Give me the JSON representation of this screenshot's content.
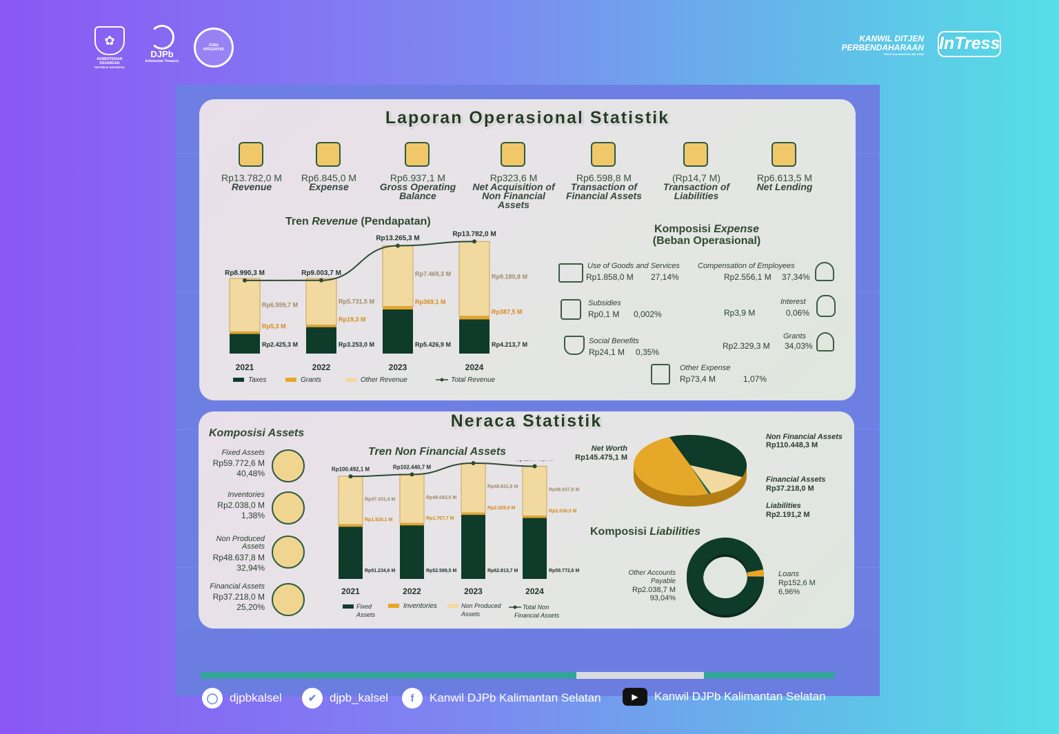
{
  "header": {
    "logo1_text": "KEMENTERIAN KEUANGAN",
    "logo1_sub": "REPUBLIK INDONESIA",
    "logo2_text": "DJPb",
    "logo2_sub": "Indonesian Treasury",
    "logo3_text": "ZONA INTEGRITAS",
    "right_logo_line1": "KANWIL DITJEN",
    "right_logo_line2": "PERBENDAHARAAN",
    "right_logo_line3": "PROV KALIMANTAN SELATAN",
    "right_badge": "InTress"
  },
  "lo": {
    "title": "Laporan Operasional Statistik",
    "kpis": [
      {
        "value": "Rp13.782,0 M",
        "label": "Revenue"
      },
      {
        "value": "Rp6.845,0 M",
        "label": "Expense"
      },
      {
        "value": "Rp6.937,1 M",
        "label": "Gross Operating Balance"
      },
      {
        "value": "Rp323,6 M",
        "label": "Net Acquisition of Non Financial Assets"
      },
      {
        "value": "Rp6.598,8 M",
        "label": "Transaction of Financial Assets"
      },
      {
        "value": "(Rp14,7 M)",
        "label": "Transaction of Liabilities"
      },
      {
        "value": "Rp6.613,5 M",
        "label": "Net Lending"
      }
    ],
    "trend_title_a": "Tren ",
    "trend_title_b": "Revenue",
    "trend_title_c": " (Pendapatan)",
    "expense_title_a": "Komposisi ",
    "expense_title_b": "Expense",
    "expense_title_c": "(Beban Operasional)",
    "expense_items": [
      {
        "label": "Use of Goods and Services",
        "value": "Rp1.858,0 M",
        "pct": "27,14%"
      },
      {
        "label": "Compensation of Employees",
        "value": "Rp2.556,1 M",
        "pct": "37,34%"
      },
      {
        "label": "Subsidies",
        "value": "Rp0,1 M",
        "pct": "0,002%"
      },
      {
        "label": "Interest",
        "value": "Rp3,9 M",
        "pct": "0,06%"
      },
      {
        "label": "Social Benefits",
        "value": "Rp24,1 M",
        "pct": "0,35%"
      },
      {
        "label": "Grants",
        "value": "Rp2.329,3 M",
        "pct": "34,03%"
      },
      {
        "label": "Other Expense",
        "value": "Rp73,4 M",
        "pct": "1,07%"
      }
    ]
  },
  "neraca": {
    "title": "Neraca Statistik",
    "assets_title_a": "Komposisi ",
    "assets_title_b": "Assets",
    "assets": [
      {
        "label": "Fixed Assets",
        "value": "Rp59.772,6 M",
        "pct": "40,48%"
      },
      {
        "label": "Inventories",
        "value": "Rp2.038,0 M",
        "pct": "1,38%"
      },
      {
        "label": "Non Produced Assets",
        "value": "Rp48.637,8 M",
        "pct": "32,94%"
      },
      {
        "label": "Financial Assets",
        "value": "Rp37.218,0 M",
        "pct": "25,20%"
      }
    ],
    "nfa_title": "Tren Non Financial Assets",
    "pie_items": [
      {
        "label": "Net Worth",
        "value": "Rp145.475,1 M"
      },
      {
        "label": "Non Financial Assets",
        "value": "Rp110.448,3 M"
      },
      {
        "label": "Financial Assets",
        "value": "Rp37.218,0 M"
      },
      {
        "label": "Liabilities",
        "value": "Rp2.191,2 M"
      }
    ],
    "liab_title_a": "Komposisi ",
    "liab_title_b": "Liabilities",
    "liab_items": [
      {
        "label": "Other Accounts Payable",
        "value": "Rp2.038,7 M",
        "pct": "93,04%"
      },
      {
        "label": "Loans",
        "value": "Rp152,6 M",
        "pct": "6,96%"
      }
    ]
  },
  "footer": {
    "instagram": "djpbkalsel",
    "twitter": "djpb_kalsel",
    "facebook": "Kanwil DJPb Kalimantan Selatan",
    "youtube": "Kanwil DJPb Kalimantan Selatan"
  },
  "colors": {
    "dark": "#0f3b2a",
    "gold": "#e8a623",
    "cream": "#f2d9a0",
    "line": "#2d4a32"
  },
  "chart_data": [
    {
      "type": "bar",
      "title": "Tren Revenue (Pendapatan)",
      "categories": [
        "2021",
        "2022",
        "2023",
        "2024"
      ],
      "series": [
        {
          "name": "Taxes",
          "values": [
            2425.3,
            3253.0,
            5426.9,
            4213.7
          ],
          "labels": [
            "Rp2.425,3 M",
            "Rp3.253,0 M",
            "Rp5.426,9 M",
            "Rp4.213,7 M"
          ]
        },
        {
          "name": "Grants",
          "values": [
            5.3,
            19.3,
            369.1,
            387.5
          ],
          "labels": [
            "Rp5,3 M",
            "Rp19,3 M",
            "Rp369,1 M",
            "Rp387,5 M"
          ]
        },
        {
          "name": "Other Revenue",
          "values": [
            6559.7,
            5731.5,
            7469.3,
            9180.8
          ],
          "labels": [
            "Rp6.559,7 M",
            "Rp5.731,5 M",
            "Rp7.469,3 M",
            "Rp9.180,8 M"
          ]
        },
        {
          "name": "Total Revenue",
          "values": [
            8990.3,
            9003.7,
            13265.3,
            13782.0
          ],
          "labels": [
            "Rp8.990,3 M",
            "Rp9.003,7 M",
            "Rp13.265,3 M",
            "Rp13.782,0 M"
          ]
        }
      ]
    },
    {
      "type": "bar",
      "title": "Tren Non Financial Assets",
      "categories": [
        "2021",
        "2022",
        "2023",
        "2024"
      ],
      "series": [
        {
          "name": "Fixed Assets",
          "values": [
            51234.6,
            52589.5,
            62813.7,
            59772.6
          ],
          "labels": [
            "Rp51.234,6 M",
            "Rp52.589,5 M",
            "Rp62.813,7 M",
            "Rp59.772,6 M"
          ]
        },
        {
          "name": "Inventories",
          "values": [
            1826.1,
            1767.7,
            2028.0,
            2038.0
          ],
          "labels": [
            "Rp1.826,1 M",
            "Rp1.767,7 M",
            "Rp2.028,0 M",
            "Rp2.038,0 M"
          ]
        },
        {
          "name": "Non Produced Assets",
          "values": [
            47431.4,
            48083.5,
            48631.6,
            48637.8
          ],
          "labels": [
            "Rp47.431,4 M",
            "Rp48.083,5 M",
            "Rp48.631,6 M",
            "Rp48.637,8 M"
          ]
        },
        {
          "name": "Total Non Financial Assets",
          "values": [
            100492.1,
            102440.7,
            113473.3,
            110448.3
          ],
          "labels": [
            "Rp100.492,1 M",
            "Rp102.440,7 M",
            "Rp113.473,3 M",
            "Rp110.448,3 M"
          ]
        }
      ]
    },
    {
      "type": "pie",
      "categories": [
        "Net Worth",
        "Non Financial Assets",
        "Financial Assets",
        "Liabilities"
      ],
      "values": [
        145475.1,
        110448.3,
        37218.0,
        2191.2
      ]
    },
    {
      "type": "pie",
      "title": "Komposisi Liabilities",
      "categories": [
        "Other Accounts Payable",
        "Loans"
      ],
      "values": [
        2038.7,
        152.6
      ]
    }
  ]
}
